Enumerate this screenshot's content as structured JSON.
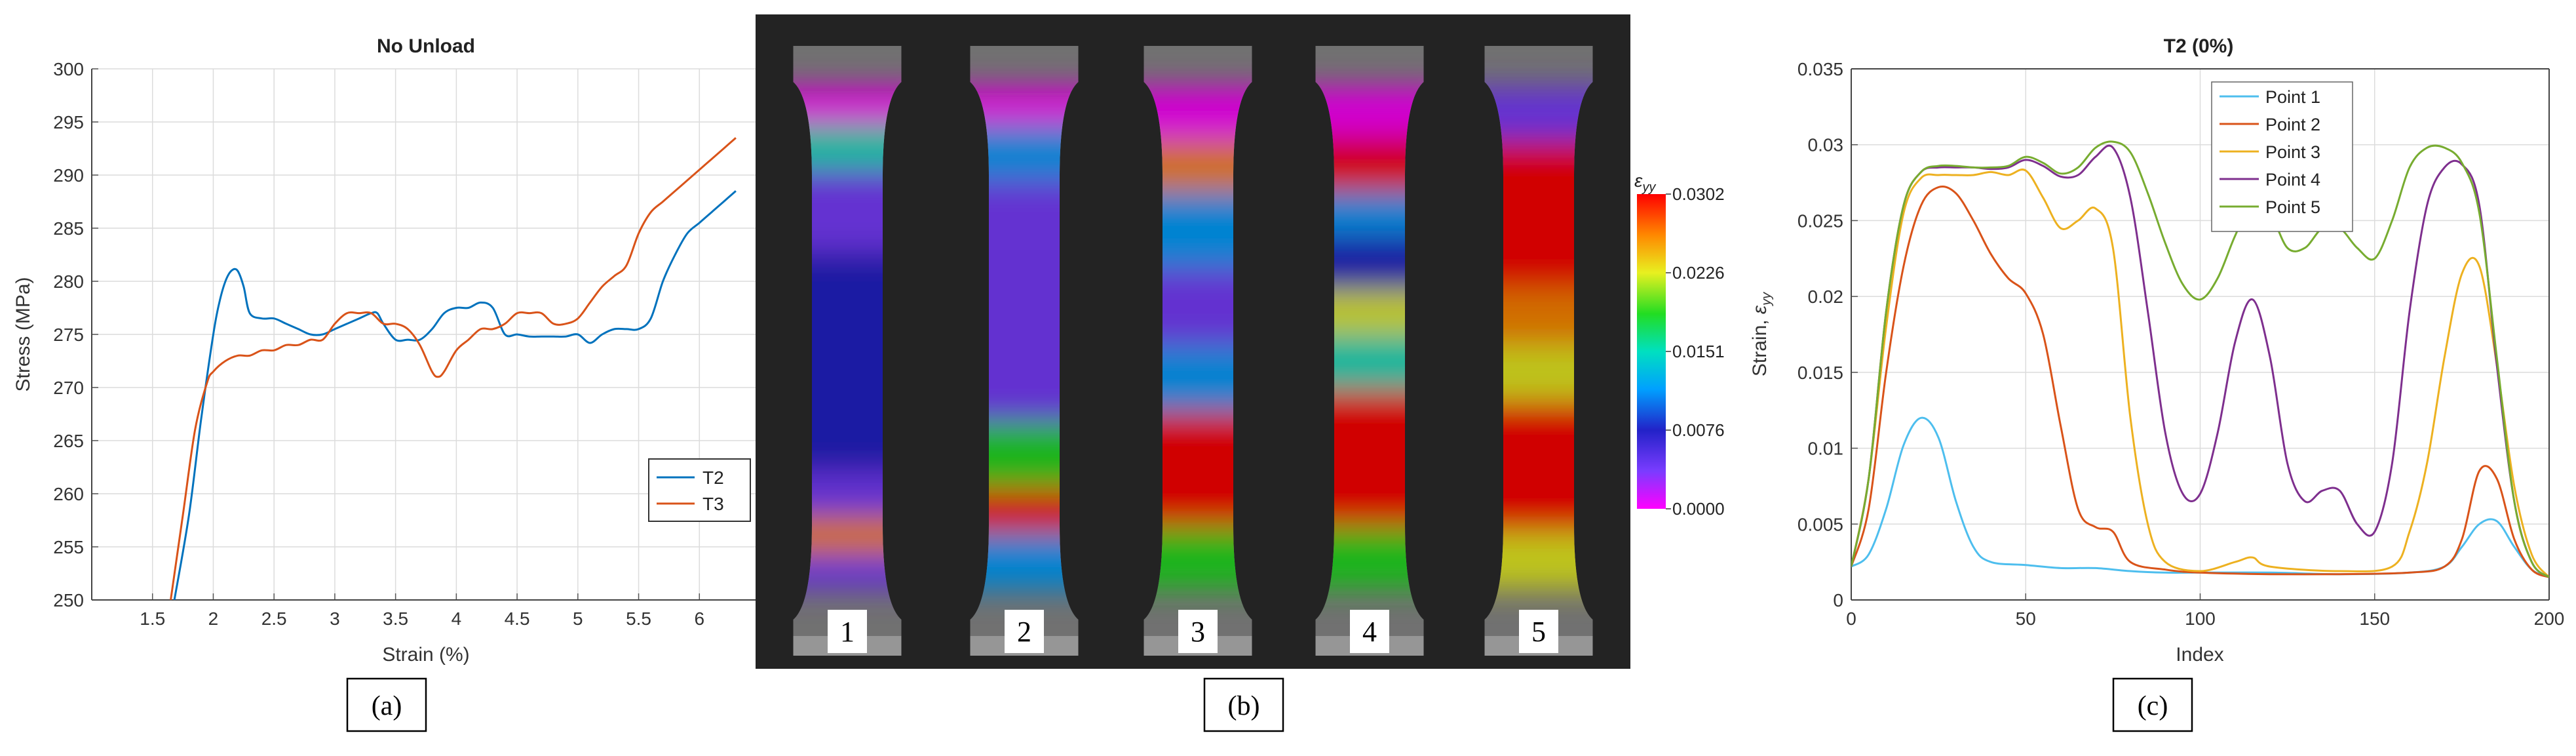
{
  "chart_data": [
    {
      "type": "line",
      "title": "No Unload",
      "xlabel": "Strain (%)",
      "ylabel": "Stress (MPa)",
      "xlim": [
        1.0,
        6.5
      ],
      "ylim": [
        250,
        300
      ],
      "xticks": [
        1.5,
        2,
        2.5,
        3,
        3.5,
        4,
        4.5,
        5,
        5.5,
        6
      ],
      "yticks": [
        250,
        255,
        260,
        265,
        270,
        275,
        280,
        285,
        290,
        295,
        300
      ],
      "grid": true,
      "legend_position": "lower-right",
      "series": [
        {
          "name": "T2",
          "color": "#0072BD",
          "x": [
            1.68,
            1.8,
            1.9,
            2.0,
            2.05,
            2.1,
            2.15,
            2.2,
            2.25,
            2.3,
            2.4,
            2.5,
            2.6,
            2.7,
            2.8,
            2.9,
            3.0,
            3.1,
            3.2,
            3.3,
            3.35,
            3.4,
            3.5,
            3.6,
            3.7,
            3.8,
            3.9,
            4.0,
            4.1,
            4.2,
            4.3,
            4.4,
            4.5,
            4.6,
            4.7,
            4.8,
            4.9,
            5.0,
            5.1,
            5.2,
            5.3,
            5.4,
            5.5,
            5.6,
            5.7,
            5.8,
            5.9,
            6.0,
            6.1,
            6.2,
            6.3
          ],
          "values": [
            250,
            258,
            267,
            275,
            278,
            280,
            281,
            281,
            279.5,
            277,
            276.5,
            276.5,
            276,
            275.5,
            275,
            275,
            275.5,
            276,
            276.5,
            277,
            277,
            276,
            274.5,
            274.5,
            274.5,
            275.5,
            277,
            277.5,
            277.5,
            278,
            277.5,
            275,
            275,
            274.8,
            274.8,
            274.8,
            274.8,
            275,
            274.2,
            275,
            275.5,
            275.5,
            275.5,
            276.5,
            280,
            282.5,
            284.5,
            285.5,
            286.5,
            287.5,
            288.5
          ]
        },
        {
          "name": "T3",
          "color": "#D95319",
          "x": [
            1.65,
            1.75,
            1.85,
            1.95,
            2.0,
            2.1,
            2.2,
            2.3,
            2.4,
            2.5,
            2.6,
            2.7,
            2.8,
            2.9,
            3.0,
            3.1,
            3.2,
            3.3,
            3.4,
            3.5,
            3.6,
            3.7,
            3.8,
            3.85,
            3.9,
            4.0,
            4.1,
            4.2,
            4.3,
            4.4,
            4.5,
            4.6,
            4.7,
            4.8,
            4.9,
            5.0,
            5.1,
            5.2,
            5.3,
            5.4,
            5.5,
            5.6,
            5.7,
            5.8,
            5.9,
            6.0,
            6.1,
            6.2,
            6.3
          ],
          "values": [
            250,
            258,
            266,
            270.5,
            271.5,
            272.5,
            273,
            273,
            273.5,
            273.5,
            274,
            274,
            274.5,
            274.5,
            276,
            277,
            277,
            277,
            276,
            276,
            275.5,
            274,
            271.5,
            271,
            271.5,
            273.5,
            274.5,
            275.5,
            275.5,
            276,
            277,
            277,
            277,
            276,
            276,
            276.5,
            278,
            279.5,
            280.5,
            281.5,
            284.5,
            286.5,
            287.5,
            288.5,
            289.5,
            290.5,
            291.5,
            292.5,
            293.5
          ]
        }
      ]
    },
    {
      "type": "heatmap",
      "colorbar_label": "ε_yy",
      "colorbar_ticks": [
        "0.0302",
        "0.0226",
        "0.0151",
        "0.0076",
        "0.0000"
      ],
      "colorbar_range": [
        0.0,
        0.0302
      ],
      "panels": [
        "1",
        "2",
        "3",
        "4",
        "5"
      ]
    },
    {
      "type": "line",
      "title": "T2 (0%)",
      "xlabel": "Index",
      "ylabel": "Strain, ε_yy",
      "xlim": [
        0,
        200
      ],
      "ylim": [
        0,
        0.035
      ],
      "xticks": [
        0,
        50,
        100,
        150,
        200
      ],
      "yticks": [
        0,
        0.005,
        0.01,
        0.015,
        0.02,
        0.025,
        0.03,
        0.035
      ],
      "ytick_labels": [
        "0",
        "0.005",
        "0.01",
        "0.015",
        "0.02",
        "0.025",
        "0.03",
        "0.035"
      ],
      "grid": true,
      "legend_position": "top-right",
      "series": [
        {
          "name": "Point 1",
          "color": "#4DBEEE",
          "x": [
            0,
            5,
            10,
            15,
            20,
            25,
            30,
            35,
            40,
            50,
            60,
            70,
            80,
            90,
            100,
            120,
            140,
            160,
            170,
            175,
            180,
            185,
            190,
            195,
            200
          ],
          "values": [
            0.0022,
            0.003,
            0.006,
            0.0102,
            0.012,
            0.0107,
            0.0065,
            0.0035,
            0.0025,
            0.0023,
            0.0021,
            0.0021,
            0.0019,
            0.0018,
            0.0018,
            0.0018,
            0.0017,
            0.0018,
            0.0022,
            0.0035,
            0.005,
            0.0052,
            0.0035,
            0.002,
            0.0015
          ]
        },
        {
          "name": "Point 2",
          "color": "#D95319",
          "x": [
            0,
            5,
            10,
            15,
            20,
            25,
            30,
            35,
            40,
            45,
            50,
            55,
            60,
            65,
            70,
            75,
            80,
            90,
            100,
            120,
            140,
            160,
            170,
            175,
            180,
            185,
            190,
            195,
            200
          ],
          "values": [
            0.0022,
            0.006,
            0.015,
            0.022,
            0.026,
            0.0272,
            0.0268,
            0.025,
            0.0228,
            0.0212,
            0.0202,
            0.0175,
            0.0115,
            0.006,
            0.0048,
            0.0045,
            0.0025,
            0.002,
            0.0018,
            0.0017,
            0.0017,
            0.0018,
            0.0022,
            0.004,
            0.0085,
            0.008,
            0.004,
            0.002,
            0.0015
          ]
        },
        {
          "name": "Point 3",
          "color": "#EDB120",
          "x": [
            0,
            5,
            10,
            15,
            20,
            25,
            30,
            35,
            40,
            45,
            50,
            55,
            60,
            65,
            70,
            75,
            80,
            85,
            90,
            100,
            110,
            115,
            120,
            140,
            155,
            160,
            165,
            170,
            175,
            180,
            185,
            190,
            195,
            200
          ],
          "values": [
            0.0022,
            0.008,
            0.018,
            0.0255,
            0.0278,
            0.028,
            0.028,
            0.028,
            0.0282,
            0.028,
            0.0283,
            0.0265,
            0.0245,
            0.025,
            0.0258,
            0.0232,
            0.012,
            0.005,
            0.0025,
            0.0019,
            0.0025,
            0.0028,
            0.0022,
            0.0019,
            0.0022,
            0.0045,
            0.009,
            0.016,
            0.0215,
            0.022,
            0.0155,
            0.0075,
            0.003,
            0.0015
          ]
        },
        {
          "name": "Point 4",
          "color": "#7E2F8E",
          "x": [
            0,
            5,
            10,
            15,
            20,
            25,
            30,
            35,
            40,
            45,
            50,
            55,
            60,
            65,
            70,
            75,
            80,
            85,
            90,
            95,
            100,
            105,
            110,
            115,
            120,
            125,
            130,
            135,
            140,
            145,
            150,
            155,
            160,
            165,
            170,
            175,
            180,
            185,
            190,
            195,
            200
          ],
          "values": [
            0.0022,
            0.008,
            0.019,
            0.026,
            0.0282,
            0.0285,
            0.0285,
            0.0285,
            0.0284,
            0.0285,
            0.029,
            0.0286,
            0.0279,
            0.028,
            0.0292,
            0.0298,
            0.0265,
            0.019,
            0.011,
            0.007,
            0.007,
            0.011,
            0.017,
            0.0198,
            0.016,
            0.009,
            0.0065,
            0.0072,
            0.0072,
            0.005,
            0.0045,
            0.009,
            0.019,
            0.026,
            0.0285,
            0.0287,
            0.026,
            0.0155,
            0.0065,
            0.0025,
            0.0015
          ]
        },
        {
          "name": "Point 5",
          "color": "#77AC30",
          "x": [
            0,
            5,
            10,
            15,
            20,
            25,
            30,
            35,
            40,
            45,
            50,
            55,
            60,
            65,
            70,
            75,
            80,
            85,
            90,
            95,
            100,
            105,
            110,
            115,
            120,
            125,
            130,
            135,
            140,
            145,
            150,
            155,
            160,
            165,
            170,
            175,
            180,
            185,
            190,
            195,
            200
          ],
          "values": [
            0.0022,
            0.008,
            0.019,
            0.026,
            0.0282,
            0.0286,
            0.0286,
            0.0285,
            0.0285,
            0.0286,
            0.0292,
            0.0288,
            0.0281,
            0.0285,
            0.0298,
            0.0302,
            0.0295,
            0.0268,
            0.0235,
            0.0208,
            0.0198,
            0.0212,
            0.024,
            0.0262,
            0.0255,
            0.0232,
            0.0232,
            0.0245,
            0.0245,
            0.0232,
            0.0225,
            0.025,
            0.0285,
            0.0298,
            0.0298,
            0.0288,
            0.0255,
            0.016,
            0.0065,
            0.0025,
            0.0015
          ]
        }
      ]
    }
  ],
  "panel_labels": [
    "(a)",
    "(b)",
    "(c)"
  ]
}
